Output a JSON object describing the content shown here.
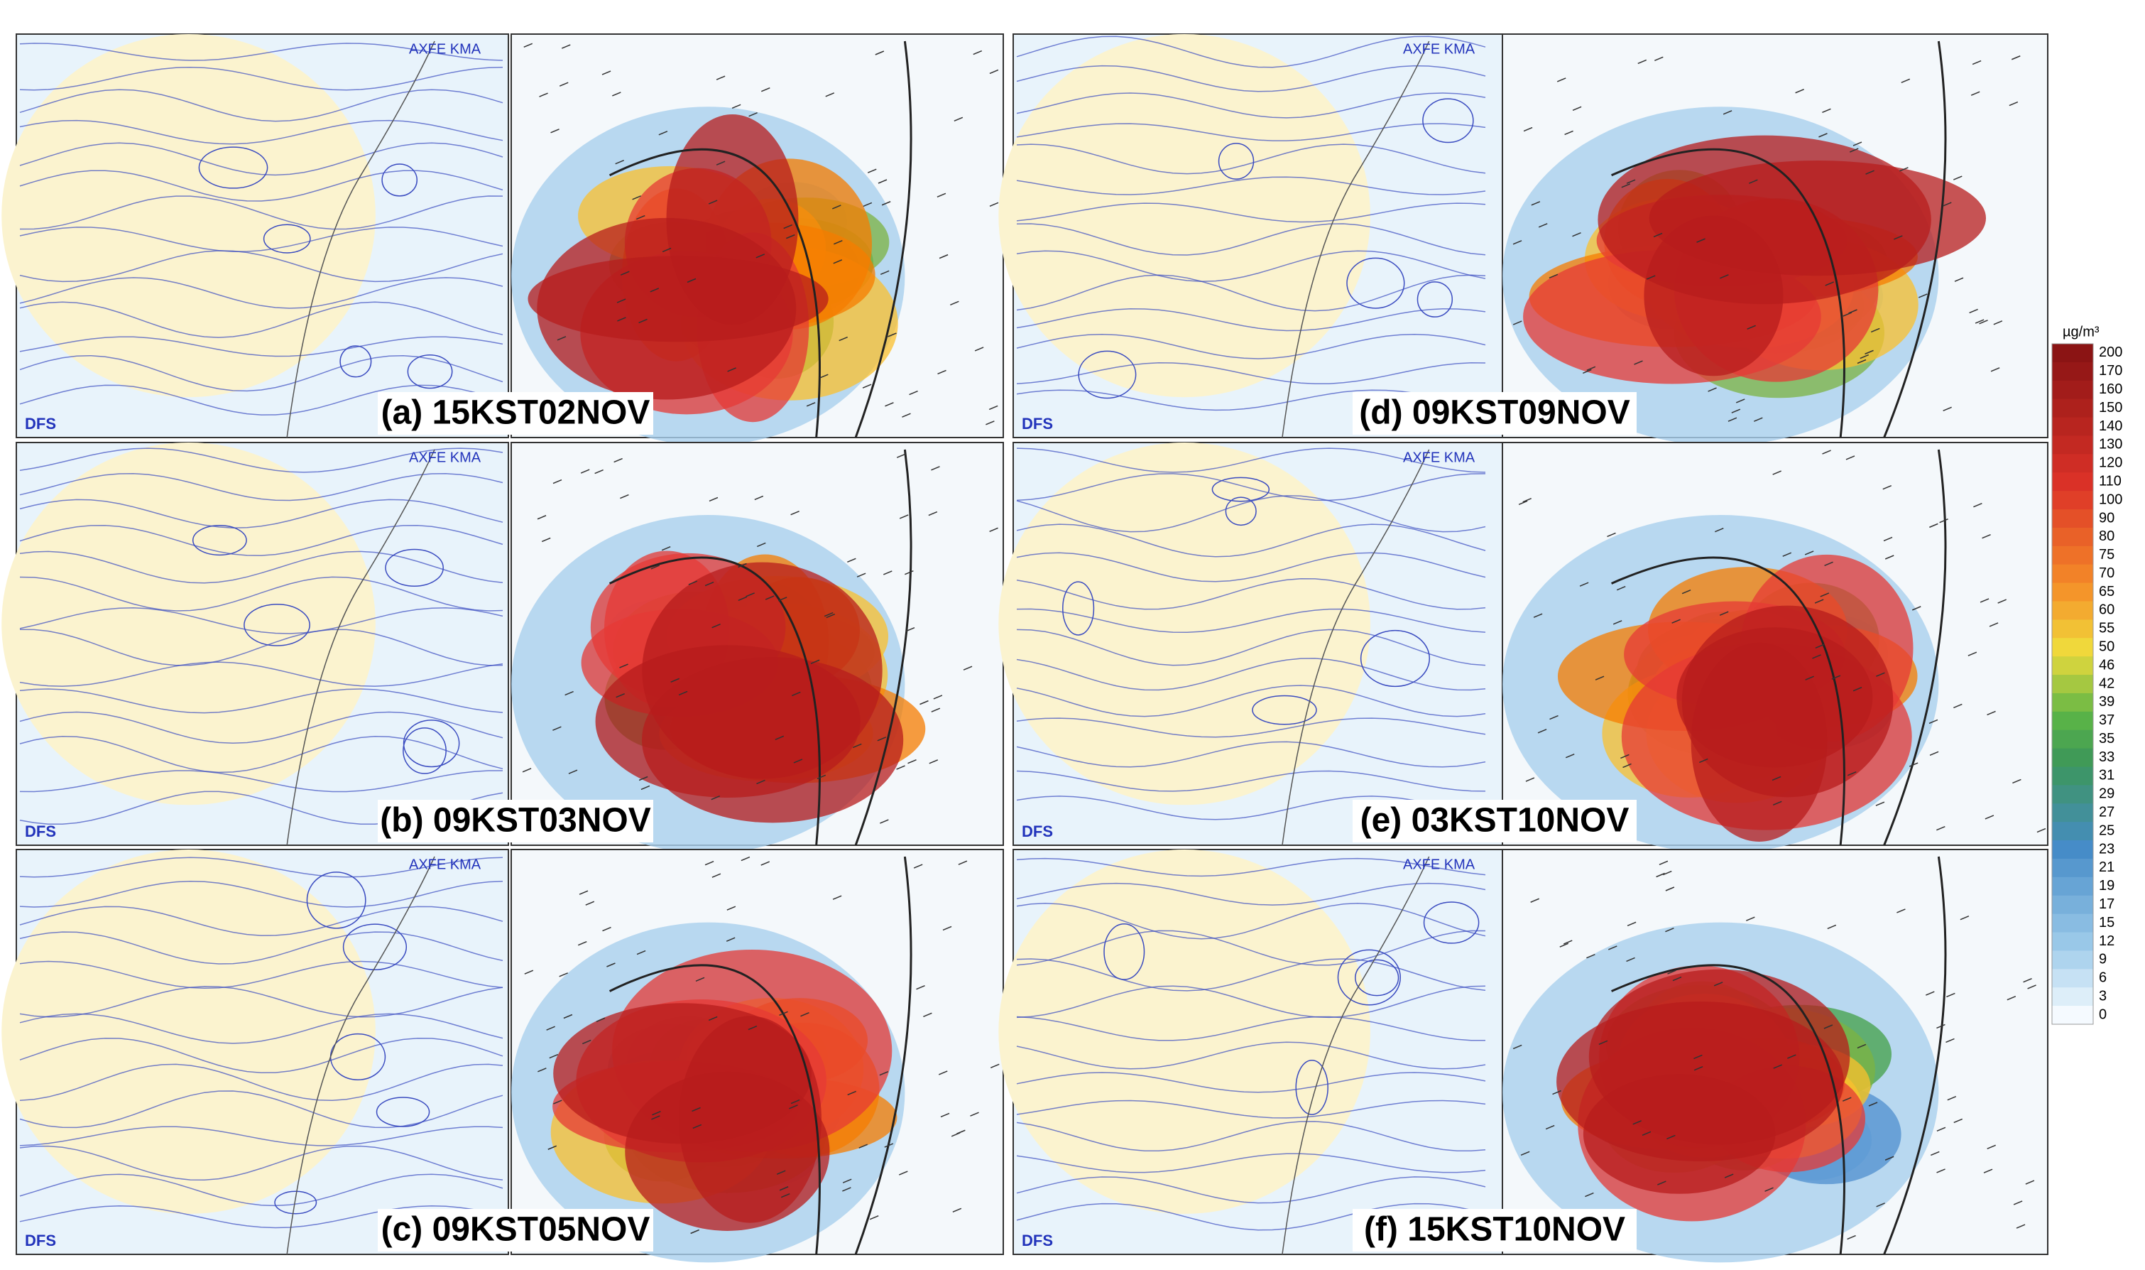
{
  "panels": [
    {
      "label": "(a) 15KST02NOV",
      "corner": "DFS",
      "header": "AXFE KMA"
    },
    {
      "label": "(b) 09KST03NOV",
      "corner": "DFS",
      "header": "AXFE KMA"
    },
    {
      "label": "(c) 09KST05NOV",
      "corner": "DFS",
      "header": "AXFE KMA"
    },
    {
      "label": "(d) 09KST09NOV",
      "corner": "DFS",
      "header": "AXFE KMA"
    },
    {
      "label": "(e) 03KST10NOV",
      "corner": "DFS",
      "header": "AXFE KMA"
    },
    {
      "label": "(f) 15KST10NOV",
      "corner": "DFS",
      "header": "AXFE KMA"
    }
  ],
  "colorbar": {
    "unit": "µg/m³",
    "ticks": [
      200,
      170,
      160,
      150,
      140,
      130,
      120,
      110,
      100,
      90,
      80,
      75,
      70,
      65,
      60,
      55,
      50,
      46,
      42,
      39,
      37,
      35,
      33,
      31,
      29,
      27,
      25,
      23,
      21,
      19,
      17,
      15,
      12,
      9,
      6,
      3,
      0
    ]
  }
}
